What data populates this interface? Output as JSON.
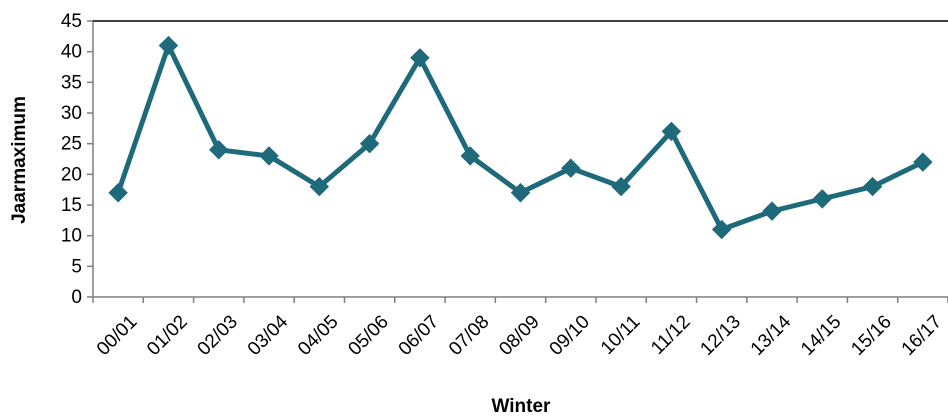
{
  "chart_data": {
    "type": "line",
    "title": "",
    "xlabel": "Winter",
    "ylabel": "Jaarmaximum",
    "categories": [
      "00/01",
      "01/02",
      "02/03",
      "03/04",
      "04/05",
      "05/06",
      "06/07",
      "07/08",
      "08/09",
      "09/10",
      "10/11",
      "11/12",
      "12/13",
      "13/14",
      "14/15",
      "15/16",
      "16/17"
    ],
    "series": [
      {
        "values": [
          17,
          41,
          24,
          23,
          18,
          25,
          39,
          23,
          17,
          21,
          18,
          27,
          11,
          14,
          16,
          18,
          22
        ]
      }
    ],
    "ylim": [
      0,
      45
    ],
    "yticks": [
      0,
      5,
      10,
      15,
      20,
      25,
      30,
      35,
      40,
      45
    ],
    "grid": false,
    "legend": "none",
    "line_color": "#1e6a7a",
    "marker": "diamond"
  }
}
